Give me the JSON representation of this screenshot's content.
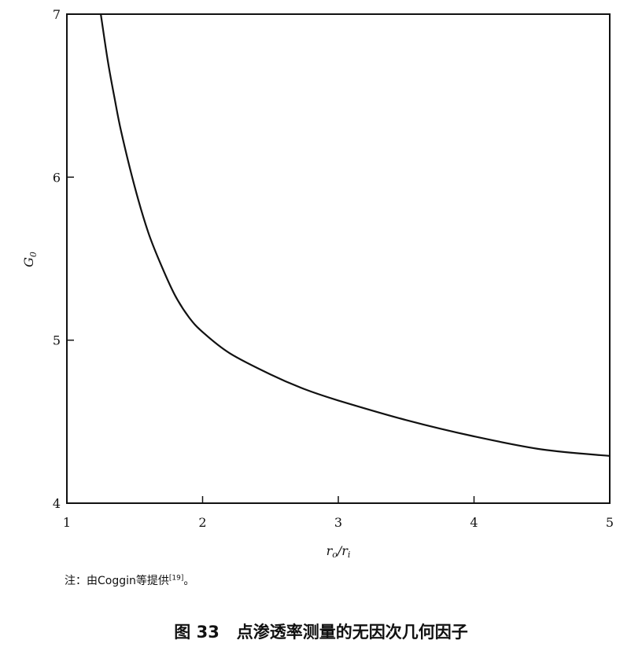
{
  "chart_data": {
    "type": "line",
    "title": "",
    "xlabel": "r_o/r_i",
    "ylabel": "G_0",
    "xlim": [
      1,
      5
    ],
    "ylim": [
      4,
      7
    ],
    "xticks": [
      "1",
      "2",
      "3",
      "4",
      "5"
    ],
    "yticks": [
      "4",
      "5",
      "6",
      "7"
    ],
    "grid": false,
    "series": [
      {
        "x": [
          1.25,
          1.3,
          1.35,
          1.4,
          1.5,
          1.6,
          1.7,
          1.8,
          1.9,
          2.0,
          2.2,
          2.5,
          2.75,
          3.0,
          3.5,
          4.0,
          4.5,
          5.0
        ],
        "y": [
          7.0,
          6.72,
          6.49,
          6.28,
          5.94,
          5.66,
          5.45,
          5.27,
          5.14,
          5.05,
          4.92,
          4.79,
          4.7,
          4.63,
          4.51,
          4.41,
          4.33,
          4.29
        ]
      }
    ]
  },
  "labels": {
    "x_main": "r",
    "x_sub": "o",
    "x_sep": "/r",
    "x_sub2": "i",
    "y_main": "G",
    "y_sub": "0"
  },
  "note": {
    "text": "注：由Coggin等提供",
    "ref": "[19]",
    "end": "。"
  },
  "caption": "图 33   点渗透率测量的无因次几何因子"
}
